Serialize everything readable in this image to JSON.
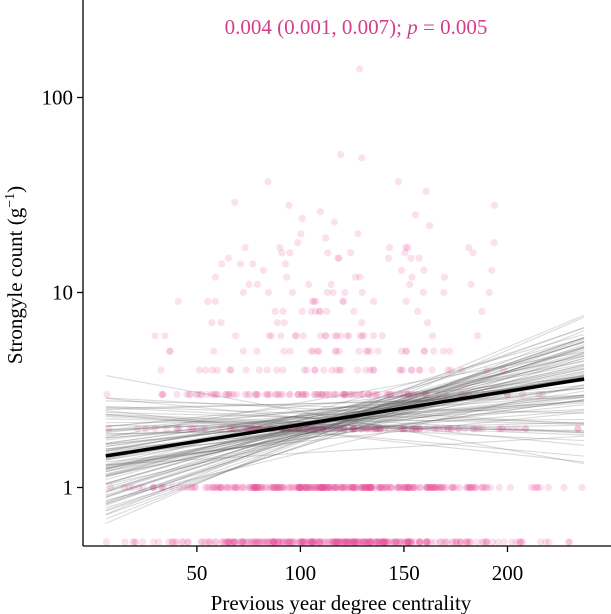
{
  "chart_data": {
    "type": "scatter",
    "annotation": {
      "estimate": "0.004 (0.001, 0.007);",
      "p_label": "p",
      "p_value": "= 0.005",
      "color": "#d43f8d"
    },
    "xlabel": "Previous year degree centrality",
    "ylabel_main": "Strongyle count (g",
    "ylabel_sup": "−1",
    "ylabel_close": ")",
    "xlim": [
      -5,
      250
    ],
    "ylim_log10": [
      -0.3,
      2.5
    ],
    "x_ticks": [
      {
        "value": 50,
        "label": "50"
      },
      {
        "value": 100,
        "label": "100"
      },
      {
        "value": 150,
        "label": "150"
      },
      {
        "value": 200,
        "label": "200"
      }
    ],
    "y_ticks": [
      {
        "value": 1,
        "label": "1"
      },
      {
        "value": 10,
        "label": "10"
      },
      {
        "value": 100,
        "label": "100"
      }
    ],
    "point_color": "#e8559a",
    "point_alpha": 0.18,
    "line_color": "#000000",
    "posterior_lines": 100,
    "fit_line": {
      "x": [
        6,
        237
      ],
      "y": [
        1.45,
        3.6
      ]
    },
    "points_x_range": [
      6,
      237
    ],
    "points_n": 1100
  }
}
